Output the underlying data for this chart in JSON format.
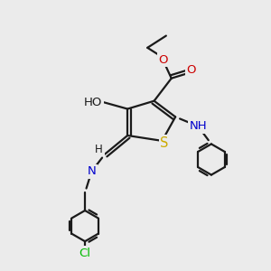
{
  "bg_color": "#ebebeb",
  "atom_colors": {
    "N": "#0000cc",
    "O": "#cc0000",
    "S": "#ccaa00",
    "Cl": "#00bb00",
    "H": "#555555"
  },
  "bond_color": "#1a1a1a",
  "bond_width": 1.6,
  "font_size": 9.5
}
